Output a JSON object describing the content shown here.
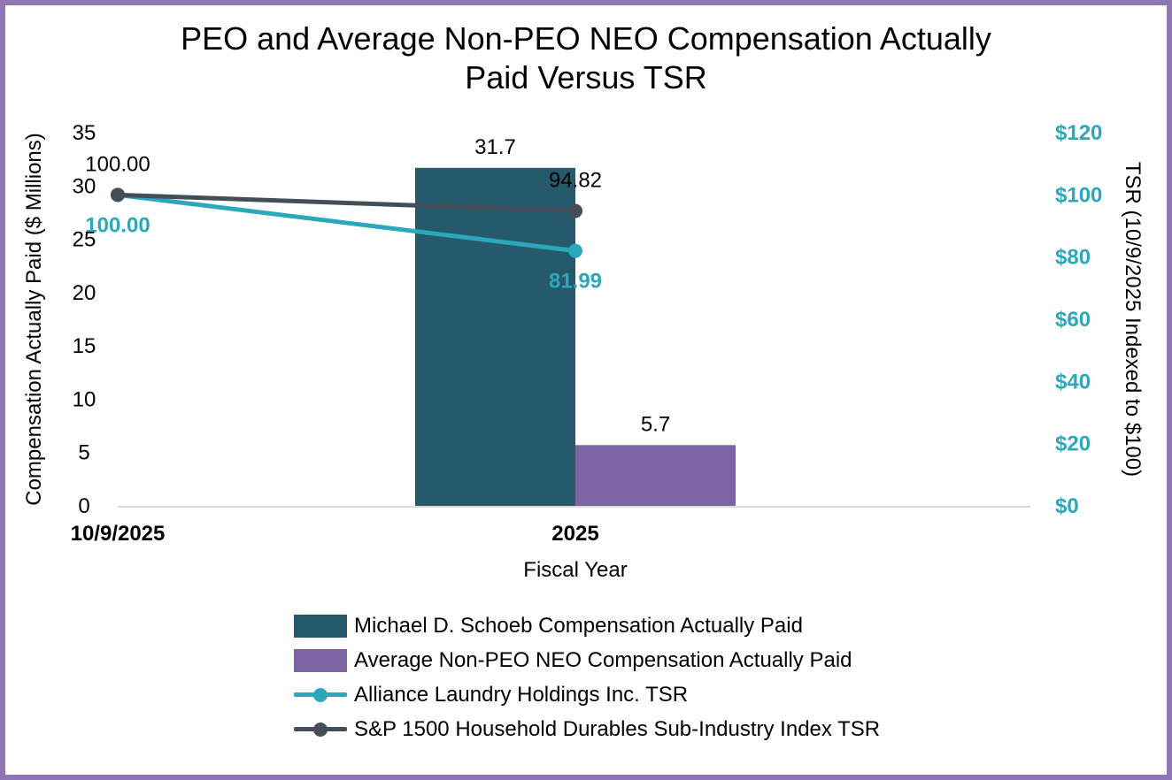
{
  "frame": {
    "border_color": "#9075B4",
    "background_color": "#FFFFFF"
  },
  "header": {
    "title_line1": "PEO and Average Non-PEO NEO Compensation Actually",
    "title_line2": "Paid Versus TSR"
  },
  "chart_data": {
    "type": "combo",
    "title": "PEO and Average Non-PEO NEO Compensation Actually Paid Versus TSR",
    "categories": [
      "10/9/2025",
      "2025"
    ],
    "x_axis": {
      "title": "Fiscal Year"
    },
    "y_left": {
      "title": "Compensation Actually Paid ($ Millions)",
      "min": 0,
      "max": 35,
      "tick_step": 5,
      "ticks": [
        "0",
        "5",
        "10",
        "15",
        "20",
        "25",
        "30",
        "35"
      ],
      "tick_color": "#000000"
    },
    "y_right": {
      "title": "TSR (10/9/2025 Indexed to $100)",
      "min": 0,
      "max": 120,
      "tick_step": 20,
      "ticks": [
        "$0",
        "$20",
        "$40",
        "$60",
        "$80",
        "$100",
        "$120"
      ],
      "tick_color": "#2BA8BC"
    },
    "grid": false,
    "legend_position": "bottom",
    "axis_line_color": "#D9D9D9",
    "series": [
      {
        "name": "Michael D. Schoeb Compensation Actually Paid",
        "type": "bar",
        "axis": "left",
        "color": "#25596B",
        "values": [
          null,
          31.7
        ],
        "labels": [
          null,
          "31.7"
        ],
        "label_color": "#000000",
        "label_bold": false
      },
      {
        "name": "Average Non-PEO NEO Compensation Actually Paid",
        "type": "bar",
        "axis": "left",
        "color": "#7D65A4",
        "values": [
          null,
          5.7
        ],
        "labels": [
          null,
          "5.7"
        ],
        "label_color": "#000000",
        "label_bold": false
      },
      {
        "name": "Alliance Laundry Holdings Inc. TSR",
        "type": "line",
        "axis": "right",
        "color": "#2BA8BC",
        "values": [
          100.0,
          81.99
        ],
        "labels": [
          "100.00",
          "81.99"
        ],
        "label_color": "#2BA8BC",
        "label_bold": true,
        "label_side": "below"
      },
      {
        "name": "S&P 1500 Household Durables Sub-Industry Index TSR",
        "type": "line",
        "axis": "right",
        "color": "#444E59",
        "values": [
          100.0,
          94.82
        ],
        "labels": [
          "100.00",
          "94.82"
        ],
        "label_color": "#000000",
        "label_bold": false,
        "label_side": "above"
      }
    ]
  }
}
